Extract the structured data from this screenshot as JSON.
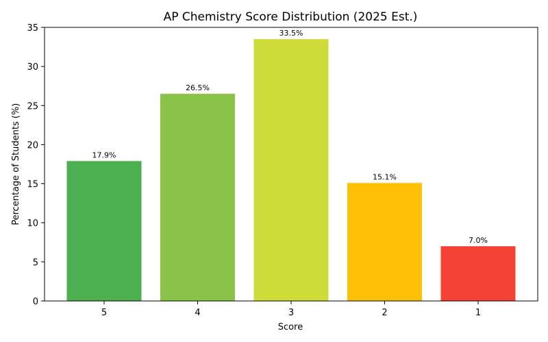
{
  "chart_data": {
    "type": "bar",
    "title": "AP Chemistry Score Distribution (2025 Est.)",
    "xlabel": "Score",
    "ylabel": "Percentage of Students (%)",
    "categories": [
      "5",
      "4",
      "3",
      "2",
      "1"
    ],
    "values": [
      17.9,
      26.5,
      33.5,
      15.1,
      7.0
    ],
    "value_labels": [
      "17.9%",
      "26.5%",
      "33.5%",
      "15.1%",
      "7.0%"
    ],
    "colors": [
      "#4caf50",
      "#8bc34a",
      "#cddc39",
      "#ffc107",
      "#f44336"
    ],
    "ylim": [
      0,
      35
    ],
    "yticks": [
      0,
      5,
      10,
      15,
      20,
      25,
      30,
      35
    ],
    "grid": false,
    "legend": "none"
  }
}
